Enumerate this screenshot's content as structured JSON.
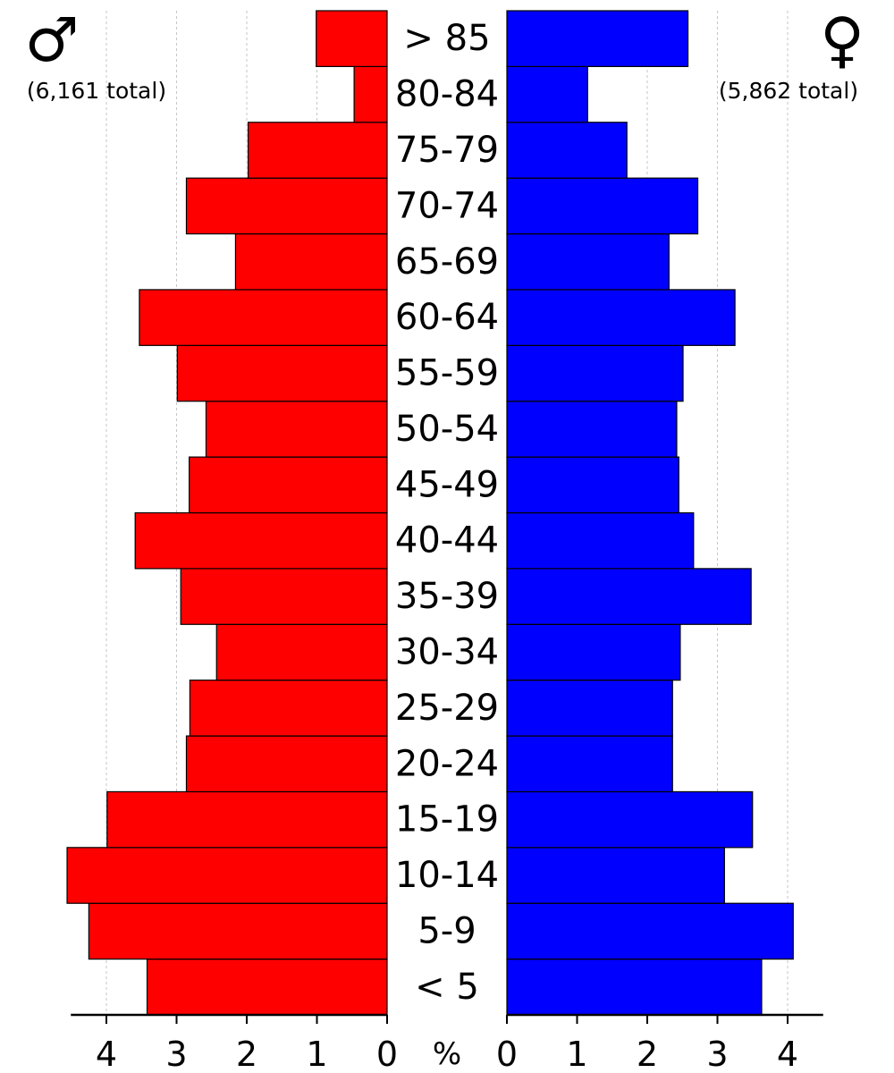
{
  "chart_data": {
    "type": "bar",
    "orientation": "horizontal",
    "subtype": "population-pyramid",
    "title": "",
    "unit_label": "%",
    "categories": [
      "< 5",
      "5-9",
      "10-14",
      "15-19",
      "20-24",
      "25-29",
      "30-34",
      "35-39",
      "40-44",
      "45-49",
      "50-54",
      "55-59",
      "60-64",
      "65-69",
      "70-74",
      "75-79",
      "80-84",
      "> 85"
    ],
    "series": [
      {
        "name": "♂",
        "total_label": "(6,161 total)",
        "color": "#ff0000",
        "side": "left",
        "values": [
          3.42,
          4.25,
          4.56,
          3.99,
          2.86,
          2.81,
          2.43,
          2.94,
          3.59,
          2.82,
          2.58,
          2.99,
          3.53,
          2.16,
          2.86,
          1.98,
          0.47,
          1.01
        ]
      },
      {
        "name": "♀",
        "total_label": "(5,862 total)",
        "color": "#0000ff",
        "side": "right",
        "values": [
          3.63,
          4.08,
          3.1,
          3.5,
          2.36,
          2.36,
          2.47,
          3.48,
          2.66,
          2.45,
          2.42,
          2.51,
          3.25,
          2.31,
          2.72,
          1.71,
          1.15,
          2.58
        ]
      }
    ],
    "xlim": [
      0,
      4.5
    ],
    "xticks": [
      "0",
      "1",
      "2",
      "3",
      "4"
    ],
    "grid": true
  }
}
